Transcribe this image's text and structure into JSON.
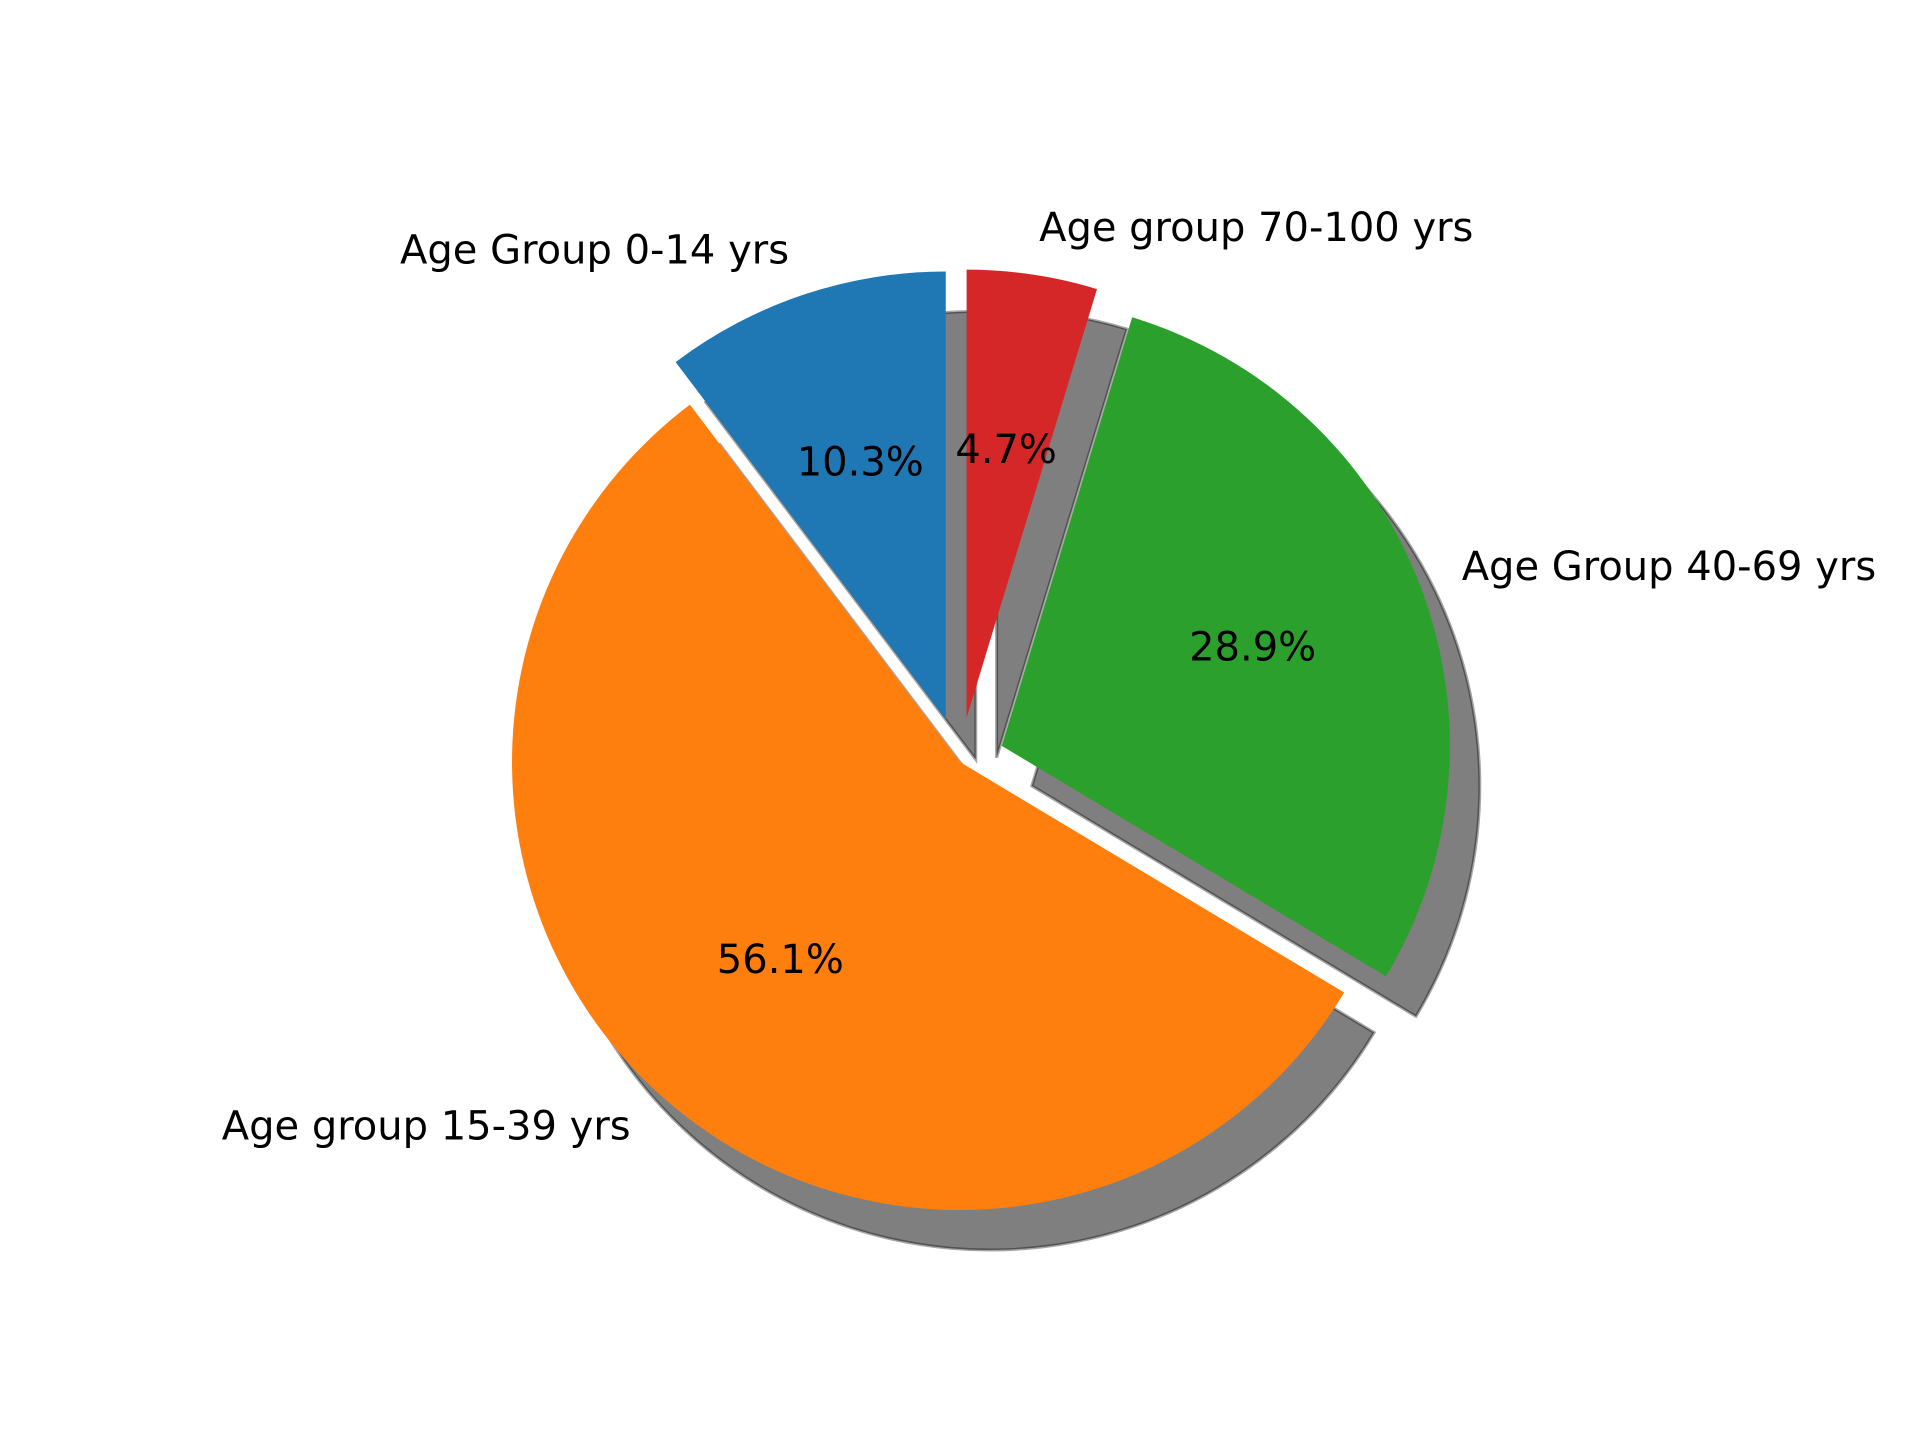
{
  "chart_data": {
    "type": "pie",
    "title": "",
    "categories": [
      "Age Group 0-14 yrs",
      "Age group 15-39 yrs",
      "Age Group 40-69 yrs",
      "Age group 70-100 yrs"
    ],
    "values": [
      10.3,
      56.1,
      28.9,
      4.7
    ],
    "percent_labels": [
      "10.3%",
      "56.1%",
      "28.9%",
      "4.7%"
    ],
    "colors": [
      "#1f77b4",
      "#ff7f0e",
      "#2ca02c",
      "#d62728"
    ],
    "explode": [
      0.1,
      0.0,
      0.1,
      0.1
    ],
    "start_angle_deg": 90,
    "direction": "counterclockwise",
    "shadow": true,
    "legend": "none"
  }
}
